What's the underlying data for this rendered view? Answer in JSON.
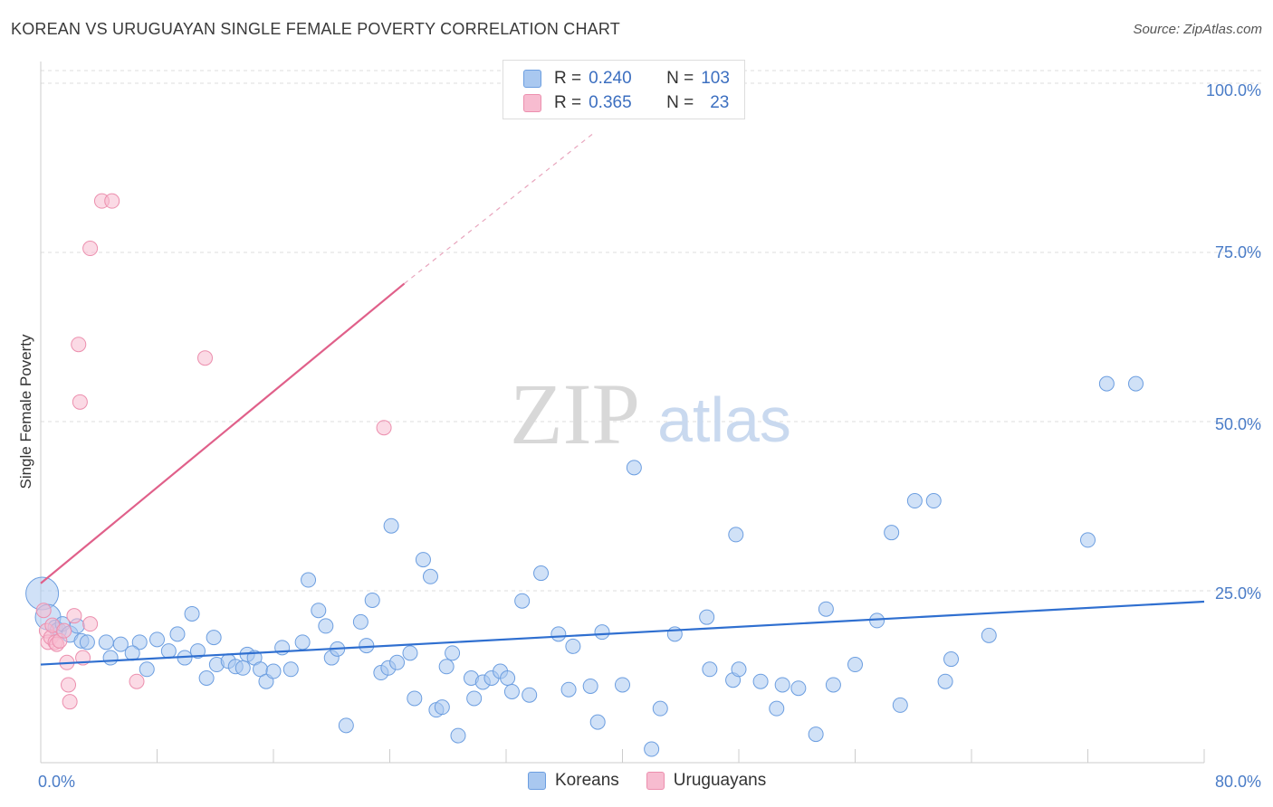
{
  "title": "KOREAN VS URUGUAYAN SINGLE FEMALE POVERTY CORRELATION CHART",
  "source": "Source: ZipAtlas.com",
  "watermark": {
    "zip": "ZIP",
    "atlas": "atlas"
  },
  "colors": {
    "blue_fill": "#a9c8f0",
    "blue_stroke": "#6c9ee0",
    "blue_line": "#2f6fd0",
    "pink_fill": "#f7bcd0",
    "pink_stroke": "#ec8fae",
    "pink_line": "#e0608a",
    "axis_text": "#4a7cc7",
    "grid": "#dddddd"
  },
  "legend": {
    "rows": [
      {
        "r_label": "R =",
        "r_value": "0.240",
        "n_label": "N =",
        "n_value": "103"
      },
      {
        "r_label": "R =",
        "r_value": "0.365",
        "n_label": "N =",
        "n_value": "23"
      }
    ]
  },
  "bottom_legend": {
    "koreans": "Koreans",
    "uruguayans": "Uruguayans"
  },
  "chart_data": {
    "type": "scatter",
    "xlabel": "",
    "ylabel": "Single Female Poverty",
    "xlim": [
      0,
      80
    ],
    "ylim": [
      0,
      100
    ],
    "x_tick_labels": [
      "0.0%",
      "80.0%"
    ],
    "y_tick_labels": [
      "25.0%",
      "50.0%",
      "75.0%",
      "100.0%"
    ],
    "y_ticks": [
      25,
      50,
      75,
      100
    ],
    "grid": true,
    "series": [
      {
        "name": "Koreans",
        "r": 0.24,
        "n": 103,
        "trend": {
          "x0": 0,
          "y0": 14.5,
          "x1": 80,
          "y1": 23.8
        },
        "points": [
          [
            0.1,
            25.0,
            18
          ],
          [
            0.5,
            21.5,
            14
          ],
          [
            1.0,
            20.0,
            8
          ],
          [
            1.2,
            19.5,
            9
          ],
          [
            1.5,
            20.5,
            8
          ],
          [
            2.0,
            19.0,
            9
          ],
          [
            2.5,
            20.2,
            8
          ],
          [
            2.8,
            18.0,
            8
          ],
          [
            3.2,
            17.8,
            8
          ],
          [
            4.5,
            17.8,
            8
          ],
          [
            5.5,
            17.5,
            8
          ],
          [
            6.8,
            17.8,
            8
          ],
          [
            4.8,
            15.5,
            8
          ],
          [
            6.3,
            16.2,
            8
          ],
          [
            7.3,
            13.8,
            8
          ],
          [
            8.0,
            18.2,
            8
          ],
          [
            9.4,
            19.0,
            8
          ],
          [
            8.8,
            16.5,
            8
          ],
          [
            9.9,
            15.5,
            8
          ],
          [
            10.4,
            22.0,
            8
          ],
          [
            10.8,
            16.5,
            8
          ],
          [
            11.4,
            12.5,
            8
          ],
          [
            11.9,
            18.5,
            8
          ],
          [
            12.1,
            14.5,
            8
          ],
          [
            12.9,
            15.0,
            8
          ],
          [
            13.4,
            14.2,
            8
          ],
          [
            13.9,
            14.0,
            8
          ],
          [
            14.2,
            16.0,
            8
          ],
          [
            14.7,
            15.5,
            8
          ],
          [
            15.1,
            13.8,
            8
          ],
          [
            15.5,
            12.0,
            8
          ],
          [
            16.0,
            13.5,
            8
          ],
          [
            16.6,
            17.0,
            8
          ],
          [
            17.2,
            13.8,
            8
          ],
          [
            18.4,
            27.0,
            8
          ],
          [
            18.0,
            17.8,
            8
          ],
          [
            19.1,
            22.5,
            8
          ],
          [
            19.6,
            20.2,
            8
          ],
          [
            20.0,
            15.5,
            8
          ],
          [
            20.4,
            16.8,
            8
          ],
          [
            21.0,
            5.5,
            8
          ],
          [
            22.0,
            20.8,
            8
          ],
          [
            22.4,
            17.3,
            8
          ],
          [
            22.8,
            24.0,
            8
          ],
          [
            23.4,
            13.3,
            8
          ],
          [
            23.9,
            14.0,
            8
          ],
          [
            24.5,
            14.8,
            8
          ],
          [
            24.1,
            35.0,
            8
          ],
          [
            25.4,
            16.2,
            8
          ],
          [
            25.7,
            9.5,
            8
          ],
          [
            26.3,
            30.0,
            8
          ],
          [
            26.8,
            27.5,
            8
          ],
          [
            27.2,
            7.8,
            8
          ],
          [
            27.6,
            8.2,
            8
          ],
          [
            27.9,
            14.2,
            8
          ],
          [
            28.3,
            16.2,
            8
          ],
          [
            28.7,
            4.0,
            8
          ],
          [
            29.6,
            12.5,
            8
          ],
          [
            29.8,
            9.5,
            8
          ],
          [
            30.4,
            11.9,
            8
          ],
          [
            31.0,
            12.5,
            8
          ],
          [
            31.6,
            13.5,
            8
          ],
          [
            32.1,
            12.5,
            8
          ],
          [
            32.4,
            10.5,
            8
          ],
          [
            33.1,
            23.9,
            8
          ],
          [
            33.6,
            10.0,
            8
          ],
          [
            34.4,
            28.0,
            8
          ],
          [
            35.6,
            19.0,
            8
          ],
          [
            36.3,
            10.8,
            8
          ],
          [
            36.6,
            17.2,
            8
          ],
          [
            37.8,
            11.3,
            8
          ],
          [
            38.3,
            6.0,
            8
          ],
          [
            38.6,
            19.3,
            8
          ],
          [
            40.0,
            11.5,
            8
          ],
          [
            40.8,
            43.6,
            8
          ],
          [
            42.0,
            2.0,
            8
          ],
          [
            42.6,
            8.0,
            8
          ],
          [
            43.6,
            19.0,
            8
          ],
          [
            45.8,
            21.5,
            8
          ],
          [
            46.0,
            13.8,
            8
          ],
          [
            47.6,
            12.2,
            8
          ],
          [
            48.0,
            13.8,
            8
          ],
          [
            47.8,
            33.7,
            8
          ],
          [
            49.5,
            12.0,
            8
          ],
          [
            50.6,
            8.0,
            8
          ],
          [
            51.0,
            11.5,
            8
          ],
          [
            52.1,
            11.0,
            8
          ],
          [
            53.3,
            4.2,
            8
          ],
          [
            54.0,
            22.7,
            8
          ],
          [
            54.5,
            11.5,
            8
          ],
          [
            56.0,
            14.5,
            8
          ],
          [
            57.5,
            21.0,
            8
          ],
          [
            58.5,
            34.0,
            8
          ],
          [
            59.1,
            8.5,
            8
          ],
          [
            60.1,
            38.7,
            8
          ],
          [
            61.4,
            38.7,
            8
          ],
          [
            62.2,
            12.0,
            8
          ],
          [
            62.6,
            15.3,
            8
          ],
          [
            65.2,
            18.8,
            8
          ],
          [
            72.0,
            32.9,
            8
          ],
          [
            73.3,
            56.0,
            8
          ],
          [
            75.3,
            56.0,
            8
          ]
        ]
      },
      {
        "name": "Uruguayans",
        "r": 0.365,
        "n": 23,
        "trend": {
          "x0": 0,
          "y0": 26.5,
          "x1": 25.0,
          "y1": 70.8
        },
        "trend_dashed": {
          "x0": 25.0,
          "y0": 70.8,
          "x1": 38.0,
          "y1": 93.0
        },
        "points": [
          [
            0.2,
            22.5,
            8
          ],
          [
            0.4,
            19.5,
            8
          ],
          [
            0.5,
            17.8,
            8
          ],
          [
            0.7,
            18.5,
            8
          ],
          [
            0.8,
            20.3,
            8
          ],
          [
            1.0,
            17.8,
            8
          ],
          [
            1.1,
            17.5,
            8
          ],
          [
            1.3,
            18.0,
            8
          ],
          [
            1.6,
            19.5,
            8
          ],
          [
            1.8,
            14.8,
            8
          ],
          [
            1.9,
            11.5,
            8
          ],
          [
            2.0,
            9.0,
            8
          ],
          [
            2.3,
            21.7,
            8
          ],
          [
            2.6,
            61.8,
            8
          ],
          [
            2.7,
            53.3,
            8
          ],
          [
            2.9,
            15.5,
            8
          ],
          [
            3.4,
            76.0,
            8
          ],
          [
            3.4,
            20.5,
            8
          ],
          [
            4.2,
            83.0,
            8
          ],
          [
            4.9,
            83.0,
            8
          ],
          [
            6.6,
            12.0,
            8
          ],
          [
            11.3,
            59.8,
            8
          ],
          [
            23.6,
            49.5,
            8
          ]
        ]
      }
    ]
  }
}
